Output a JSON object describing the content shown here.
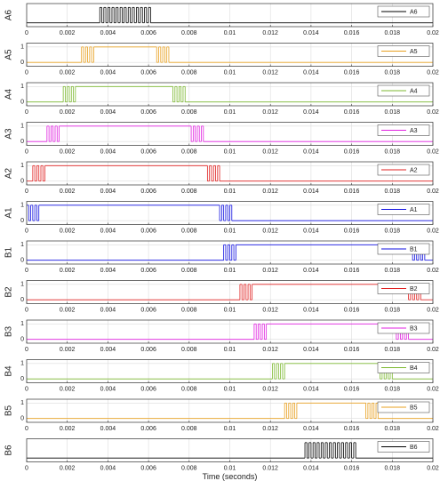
{
  "chart_data": [
    {
      "type": "line",
      "step": true,
      "ylabel": "A6",
      "legend": "upper right",
      "grid": true,
      "xlim": [
        0,
        0.02
      ],
      "xticks": [
        0,
        0.002,
        0.004,
        0.006,
        0.008,
        0.01,
        0.012,
        0.014,
        0.016,
        0.018,
        0.02
      ],
      "ylim": [
        -0.25,
        1.25
      ],
      "series": [
        {
          "name": "A6",
          "color": "#000000",
          "x": [
            0,
            0.0036,
            0.0037,
            0.0038,
            0.0039,
            0.004,
            0.0041,
            0.0042,
            0.0043,
            0.0044,
            0.0045,
            0.0046,
            0.0047,
            0.0048,
            0.0049,
            0.005,
            0.0051,
            0.0052,
            0.0053,
            0.0054,
            0.0055,
            0.0056,
            0.0057,
            0.0058,
            0.0059,
            0.006,
            0.0061
          ],
          "values": [
            0,
            1,
            0,
            1,
            0,
            1,
            0,
            1,
            0,
            1,
            0,
            1,
            0,
            1,
            0,
            1,
            0,
            1,
            0,
            1,
            0,
            1,
            0,
            1,
            0,
            1,
            0
          ]
        }
      ]
    },
    {
      "type": "line",
      "step": true,
      "ylabel": "A5",
      "legend": "upper right",
      "grid": true,
      "xlim": [
        0,
        0.02
      ],
      "xticks": [
        0,
        0.002,
        0.004,
        0.006,
        0.008,
        0.01,
        0.012,
        0.014,
        0.016,
        0.018,
        0.02
      ],
      "ylim": [
        -0.25,
        1.25
      ],
      "yticks": [
        0,
        1
      ],
      "series": [
        {
          "name": "A5",
          "color": "#e8a020",
          "x": [
            0,
            0.0027,
            0.0028,
            0.0029,
            0.003,
            0.0031,
            0.0032,
            0.0033,
            0.0064,
            0.0065,
            0.0066,
            0.0067,
            0.0068,
            0.0069,
            0.007
          ],
          "values": [
            0,
            1,
            0,
            1,
            0,
            1,
            0,
            1,
            0,
            1,
            0,
            1,
            0,
            1,
            0
          ]
        }
      ]
    },
    {
      "type": "line",
      "step": true,
      "ylabel": "A4",
      "legend": "upper right",
      "grid": true,
      "xlim": [
        0,
        0.02
      ],
      "xticks": [
        0,
        0.002,
        0.004,
        0.006,
        0.008,
        0.01,
        0.012,
        0.014,
        0.016,
        0.018,
        0.02
      ],
      "ylim": [
        -0.25,
        1.25
      ],
      "yticks": [
        0,
        1
      ],
      "series": [
        {
          "name": "A4",
          "color": "#7cb830",
          "x": [
            0,
            0.0018,
            0.0019,
            0.002,
            0.0021,
            0.0022,
            0.0023,
            0.0024,
            0.0072,
            0.0073,
            0.0074,
            0.0075,
            0.0076,
            0.0077,
            0.0078
          ],
          "values": [
            0,
            1,
            0,
            1,
            0,
            1,
            0,
            1,
            0,
            1,
            0,
            1,
            0,
            1,
            0
          ]
        }
      ]
    },
    {
      "type": "line",
      "step": true,
      "ylabel": "A3",
      "legend": "upper right",
      "grid": true,
      "xlim": [
        0,
        0.02
      ],
      "xticks": [
        0,
        0.002,
        0.004,
        0.006,
        0.008,
        0.01,
        0.012,
        0.014,
        0.016,
        0.018,
        0.02
      ],
      "ylim": [
        -0.25,
        1.25
      ],
      "yticks": [
        0,
        1
      ],
      "series": [
        {
          "name": "A3",
          "color": "#e020e0",
          "x": [
            0,
            0.001,
            0.0011,
            0.0012,
            0.0013,
            0.0014,
            0.0015,
            0.0016,
            0.0081,
            0.0082,
            0.0083,
            0.0084,
            0.0085,
            0.0086,
            0.0087
          ],
          "values": [
            0,
            1,
            0,
            1,
            0,
            1,
            0,
            1,
            0,
            1,
            0,
            1,
            0,
            1,
            0
          ]
        }
      ]
    },
    {
      "type": "line",
      "step": true,
      "ylabel": "A2",
      "legend": "upper right",
      "grid": true,
      "xlim": [
        0,
        0.02
      ],
      "xticks": [
        0,
        0.002,
        0.004,
        0.006,
        0.008,
        0.01,
        0.012,
        0.014,
        0.016,
        0.018,
        0.02
      ],
      "ylim": [
        -0.25,
        1.25
      ],
      "yticks": [
        0,
        1
      ],
      "series": [
        {
          "name": "A2",
          "color": "#e02020",
          "x": [
            0,
            0.0003,
            0.0004,
            0.0005,
            0.0006,
            0.0007,
            0.0008,
            0.0009,
            0.0089,
            0.009,
            0.0091,
            0.0092,
            0.0093,
            0.0094,
            0.0095
          ],
          "values": [
            0,
            1,
            0,
            1,
            0,
            1,
            0,
            1,
            0,
            1,
            0,
            1,
            0,
            1,
            0
          ]
        }
      ]
    },
    {
      "type": "line",
      "step": true,
      "ylabel": "A1",
      "legend": "upper right",
      "grid": true,
      "xlim": [
        0,
        0.02
      ],
      "xticks": [
        0,
        0.002,
        0.004,
        0.006,
        0.008,
        0.01,
        0.012,
        0.014,
        0.016,
        0.018,
        0.02
      ],
      "ylim": [
        -0.25,
        1.25
      ],
      "yticks": [
        0,
        1
      ],
      "series": [
        {
          "name": "A1",
          "color": "#1010e0",
          "x": [
            0,
            0.0001,
            0.0002,
            0.0003,
            0.0004,
            0.0005,
            0.0006,
            0.0095,
            0.0096,
            0.0097,
            0.0098,
            0.0099,
            0.01,
            0.0101
          ],
          "values": [
            1,
            0,
            1,
            0,
            1,
            0,
            1,
            0,
            1,
            0,
            1,
            0,
            1,
            0
          ]
        }
      ]
    },
    {
      "type": "line",
      "step": true,
      "ylabel": "B1",
      "legend": "upper right",
      "grid": true,
      "xlim": [
        0,
        0.02
      ],
      "xticks": [
        0,
        0.002,
        0.004,
        0.006,
        0.008,
        0.01,
        0.012,
        0.014,
        0.016,
        0.018,
        0.02
      ],
      "ylim": [
        -0.25,
        1.25
      ],
      "yticks": [
        0,
        1
      ],
      "series": [
        {
          "name": "B1",
          "color": "#1010e0",
          "x": [
            0,
            0.0097,
            0.0098,
            0.0099,
            0.01,
            0.0101,
            0.0102,
            0.0103,
            0.019,
            0.0191,
            0.0192,
            0.0193,
            0.0194,
            0.0195,
            0.0196
          ],
          "values": [
            0,
            1,
            0,
            1,
            0,
            1,
            0,
            1,
            0,
            1,
            0,
            1,
            0,
            1,
            0
          ]
        }
      ]
    },
    {
      "type": "line",
      "step": true,
      "ylabel": "B2",
      "legend": "upper right",
      "grid": true,
      "xlim": [
        0,
        0.02
      ],
      "xticks": [
        0,
        0.002,
        0.004,
        0.006,
        0.008,
        0.01,
        0.012,
        0.014,
        0.016,
        0.018,
        0.02
      ],
      "ylim": [
        -0.25,
        1.25
      ],
      "yticks": [
        0,
        1
      ],
      "series": [
        {
          "name": "B2",
          "color": "#e02020",
          "x": [
            0,
            0.0105,
            0.0106,
            0.0107,
            0.0108,
            0.0109,
            0.011,
            0.0111,
            0.0188,
            0.0189,
            0.019,
            0.0191,
            0.0192,
            0.0193,
            0.0194
          ],
          "values": [
            0,
            1,
            0,
            1,
            0,
            1,
            0,
            1,
            0,
            1,
            0,
            1,
            0,
            1,
            0
          ]
        }
      ]
    },
    {
      "type": "line",
      "step": true,
      "ylabel": "B3",
      "legend": "upper right",
      "grid": true,
      "xlim": [
        0,
        0.02
      ],
      "xticks": [
        0,
        0.002,
        0.004,
        0.006,
        0.008,
        0.01,
        0.012,
        0.014,
        0.016,
        0.018,
        0.02
      ],
      "ylim": [
        -0.25,
        1.25
      ],
      "yticks": [
        0,
        1
      ],
      "series": [
        {
          "name": "B3",
          "color": "#e020e0",
          "x": [
            0,
            0.0112,
            0.0113,
            0.0114,
            0.0115,
            0.0116,
            0.0117,
            0.0118,
            0.0182,
            0.0183,
            0.0184,
            0.0185,
            0.0186,
            0.0187,
            0.0188
          ],
          "values": [
            0,
            1,
            0,
            1,
            0,
            1,
            0,
            1,
            0,
            1,
            0,
            1,
            0,
            1,
            0
          ]
        }
      ]
    },
    {
      "type": "line",
      "step": true,
      "ylabel": "B4",
      "legend": "upper right",
      "grid": true,
      "xlim": [
        0,
        0.02
      ],
      "xticks": [
        0,
        0.002,
        0.004,
        0.006,
        0.008,
        0.01,
        0.012,
        0.014,
        0.016,
        0.018,
        0.02
      ],
      "ylim": [
        -0.25,
        1.25
      ],
      "yticks": [
        0,
        1
      ],
      "series": [
        {
          "name": "B4",
          "color": "#7cb830",
          "x": [
            0,
            0.0121,
            0.0122,
            0.0123,
            0.0124,
            0.0125,
            0.0126,
            0.0127,
            0.0174,
            0.0175,
            0.0176,
            0.0177,
            0.0178,
            0.0179,
            0.018
          ],
          "values": [
            0,
            1,
            0,
            1,
            0,
            1,
            0,
            1,
            0,
            1,
            0,
            1,
            0,
            1,
            0
          ]
        }
      ]
    },
    {
      "type": "line",
      "step": true,
      "ylabel": "B5",
      "legend": "upper right",
      "grid": true,
      "xlim": [
        0,
        0.02
      ],
      "xticks": [
        0,
        0.002,
        0.004,
        0.006,
        0.008,
        0.01,
        0.012,
        0.014,
        0.016,
        0.018,
        0.02
      ],
      "ylim": [
        -0.25,
        1.25
      ],
      "yticks": [
        0,
        1
      ],
      "series": [
        {
          "name": "B5",
          "color": "#e8a020",
          "x": [
            0,
            0.0127,
            0.0128,
            0.0129,
            0.013,
            0.0131,
            0.0132,
            0.0133,
            0.0167,
            0.0168,
            0.0169,
            0.017,
            0.0171,
            0.0172,
            0.0173
          ],
          "values": [
            0,
            1,
            0,
            1,
            0,
            1,
            0,
            1,
            0,
            1,
            0,
            1,
            0,
            1,
            0
          ]
        }
      ]
    },
    {
      "type": "line",
      "step": true,
      "ylabel": "B6",
      "xlabel": "Time (seconds)",
      "legend": "upper right",
      "grid": true,
      "xlim": [
        0,
        0.02
      ],
      "xticks": [
        0,
        0.002,
        0.004,
        0.006,
        0.008,
        0.01,
        0.012,
        0.014,
        0.016,
        0.018,
        0.02
      ],
      "ylim": [
        -0.25,
        1.25
      ],
      "series": [
        {
          "name": "B6",
          "color": "#000000",
          "x": [
            0,
            0.0137,
            0.0138,
            0.0139,
            0.014,
            0.0141,
            0.0142,
            0.0143,
            0.0144,
            0.0145,
            0.0146,
            0.0147,
            0.0148,
            0.0149,
            0.015,
            0.0151,
            0.0152,
            0.0153,
            0.0154,
            0.0155,
            0.0156,
            0.0157,
            0.0158,
            0.0159,
            0.016,
            0.0161,
            0.0162
          ],
          "values": [
            0,
            1,
            0,
            1,
            0,
            1,
            0,
            1,
            0,
            1,
            0,
            1,
            0,
            1,
            0,
            1,
            0,
            1,
            0,
            1,
            0,
            1,
            0,
            1,
            0,
            1,
            0
          ]
        }
      ]
    }
  ]
}
